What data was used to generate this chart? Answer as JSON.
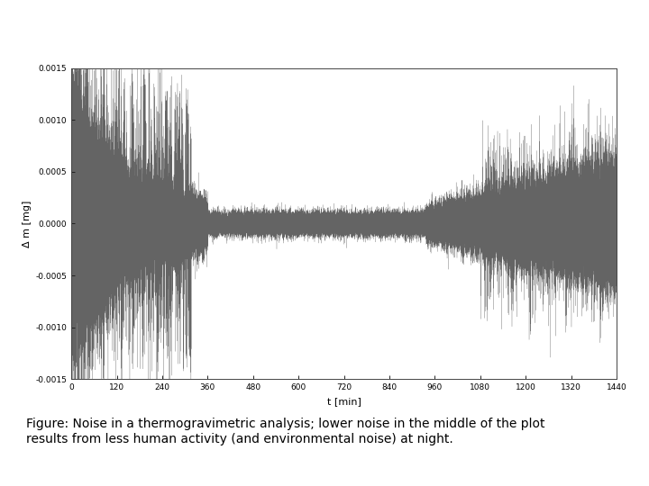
{
  "xlabel": "t [min]",
  "ylabel": "Δ m [mg]",
  "xlim": [
    0,
    1440
  ],
  "ylim": [
    -0.0015,
    0.0015
  ],
  "xticks": [
    0,
    120,
    240,
    360,
    480,
    600,
    720,
    840,
    960,
    1080,
    1200,
    1320,
    1440
  ],
  "yticks": [
    -0.0015,
    -0.001,
    -0.0005,
    0.0,
    0.0005,
    0.001,
    0.0015
  ],
  "line_color": "#222222",
  "background_color": "#ffffff",
  "caption": "Figure: Noise in a thermogravimetric analysis; lower noise in the middle of the plot\nresults from less human activity (and environmental noise) at night.",
  "caption_fontsize": 10,
  "n_points": 86400,
  "random_seed": 42
}
